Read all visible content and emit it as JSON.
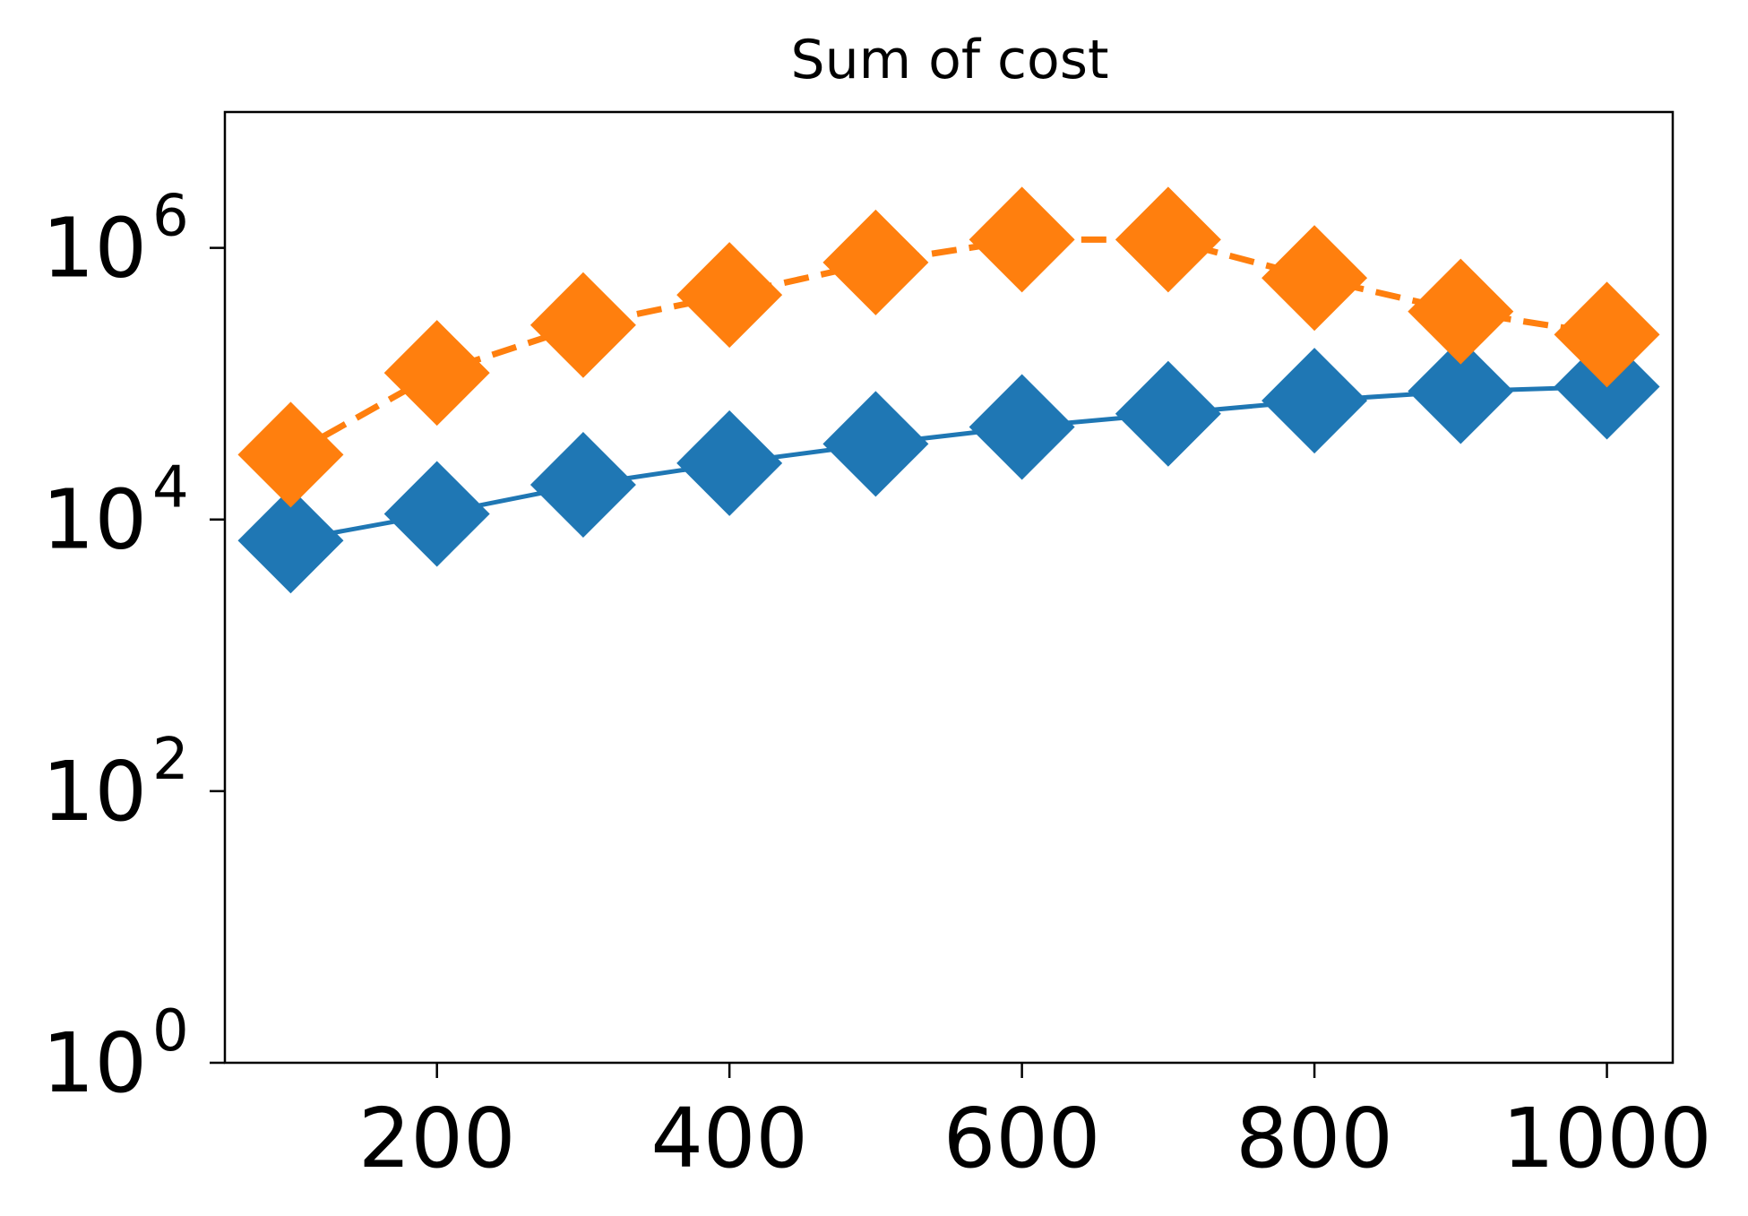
{
  "chart_data": {
    "type": "line",
    "title": "Sum of cost",
    "xlabel": "",
    "ylabel": "",
    "yscale": "log",
    "xlim": [
      55,
      1045
    ],
    "ylim": [
      1,
      10000000
    ],
    "x_ticks": [
      200,
      400,
      600,
      800,
      1000
    ],
    "x_tick_labels": [
      "200",
      "400",
      "600",
      "800",
      "1000"
    ],
    "y_ticks": [
      1,
      100,
      10000,
      1000000
    ],
    "y_tick_labels": [
      {
        "base": "10",
        "exp": "0"
      },
      {
        "base": "10",
        "exp": "2"
      },
      {
        "base": "10",
        "exp": "4"
      },
      {
        "base": "10",
        "exp": "6"
      }
    ],
    "grid": false,
    "legend": false,
    "x": [
      100,
      200,
      300,
      400,
      500,
      600,
      700,
      800,
      900,
      1000
    ],
    "series": [
      {
        "color": "#1f77b4",
        "line_style": "solid",
        "marker": "diamond",
        "values": [
          7000,
          11000,
          18000,
          26000,
          36000,
          48000,
          60000,
          75000,
          88000,
          95000
        ]
      },
      {
        "color": "#ff7f0e",
        "line_style": "dashed",
        "marker": "diamond",
        "values": [
          30000,
          120000,
          270000,
          450000,
          780000,
          1150000,
          1150000,
          600000,
          340000,
          230000
        ]
      }
    ]
  }
}
